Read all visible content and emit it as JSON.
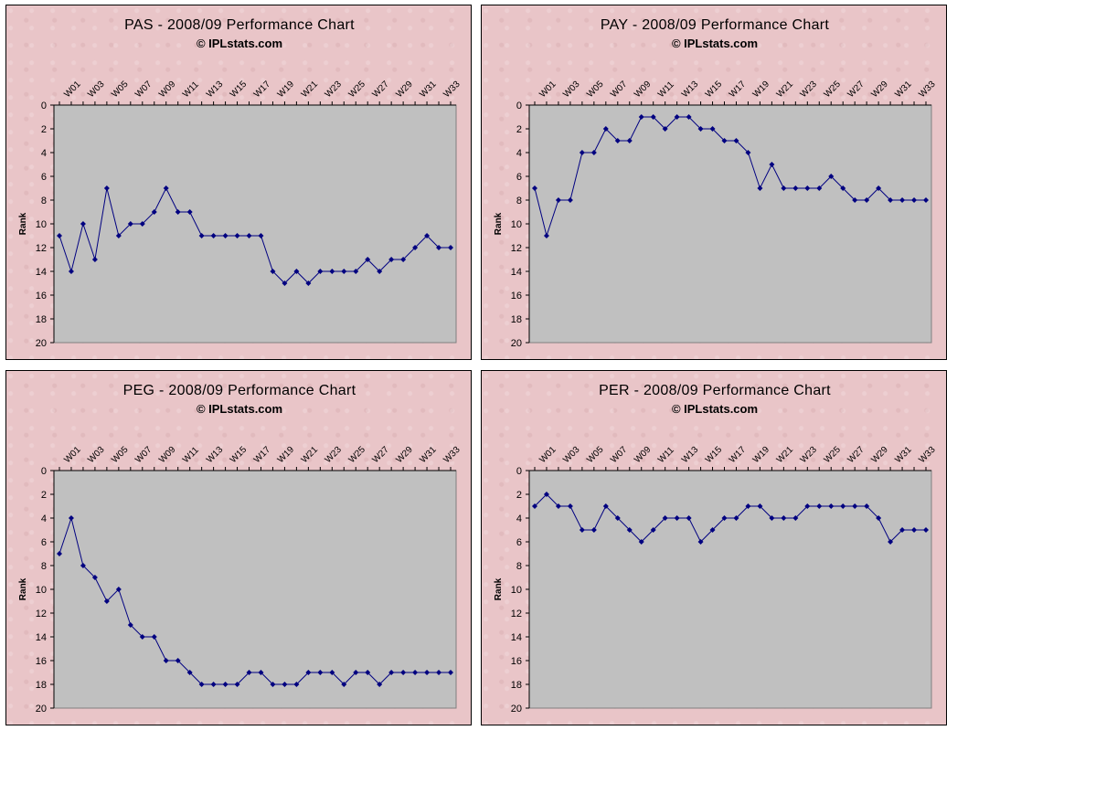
{
  "chart_data": [
    {
      "type": "line",
      "title": "PAS - 2008/09 Performance Chart",
      "subtitle": "© IPLstats.com",
      "ylabel": "Rank",
      "ylim": [
        20,
        0
      ],
      "ytick_labels": [
        "0",
        "2",
        "4",
        "6",
        "8",
        "10",
        "12",
        "14",
        "16",
        "18",
        "20"
      ],
      "xtick_labels": [
        "W01",
        "W03",
        "W05",
        "W07",
        "W09",
        "W11",
        "W13",
        "W15",
        "W17",
        "W19",
        "W21",
        "W23",
        "W25",
        "W27",
        "W29",
        "W31",
        "W33"
      ],
      "line_color": "#000080",
      "plot_bg": "#c0c0c0",
      "x": [
        "W00",
        "W01",
        "W02",
        "W03",
        "W04",
        "W05",
        "W06",
        "W07",
        "W08",
        "W09",
        "W10",
        "W11",
        "W12",
        "W13",
        "W14",
        "W15",
        "W16",
        "W17",
        "W18",
        "W19",
        "W20",
        "W21",
        "W22",
        "W23",
        "W24",
        "W25",
        "W26",
        "W27",
        "W28",
        "W29",
        "W30",
        "W31",
        "W32",
        "W33"
      ],
      "series": [
        {
          "values": [
            11,
            14,
            10,
            13,
            7,
            11,
            10,
            10,
            9,
            7,
            9,
            9,
            11,
            11,
            11,
            11,
            11,
            11,
            14,
            15,
            14,
            15,
            14,
            14,
            14,
            14,
            13,
            14,
            13,
            13,
            12,
            11,
            12,
            12
          ]
        }
      ]
    },
    {
      "type": "line",
      "title": "PAY - 2008/09 Performance Chart",
      "subtitle": "© IPLstats.com",
      "ylabel": "Rank",
      "ylim": [
        20,
        0
      ],
      "ytick_labels": [
        "0",
        "2",
        "4",
        "6",
        "8",
        "10",
        "12",
        "14",
        "16",
        "18",
        "20"
      ],
      "xtick_labels": [
        "W01",
        "W03",
        "W05",
        "W07",
        "W09",
        "W11",
        "W13",
        "W15",
        "W17",
        "W19",
        "W21",
        "W23",
        "W25",
        "W27",
        "W29",
        "W31",
        "W33"
      ],
      "line_color": "#000080",
      "plot_bg": "#c0c0c0",
      "x": [
        "W00",
        "W01",
        "W02",
        "W03",
        "W04",
        "W05",
        "W06",
        "W07",
        "W08",
        "W09",
        "W10",
        "W11",
        "W12",
        "W13",
        "W14",
        "W15",
        "W16",
        "W17",
        "W18",
        "W19",
        "W20",
        "W21",
        "W22",
        "W23",
        "W24",
        "W25",
        "W26",
        "W27",
        "W28",
        "W29",
        "W30",
        "W31",
        "W32",
        "W33"
      ],
      "series": [
        {
          "values": [
            7,
            11,
            8,
            8,
            4,
            4,
            2,
            3,
            3,
            1,
            1,
            2,
            1,
            1,
            2,
            2,
            3,
            3,
            4,
            7,
            5,
            7,
            7,
            7,
            7,
            6,
            7,
            8,
            8,
            7,
            8,
            8,
            8,
            8
          ]
        }
      ]
    },
    {
      "type": "line",
      "title": "PEG - 2008/09 Performance Chart",
      "subtitle": "© IPLstats.com",
      "ylabel": "Rank",
      "ylim": [
        20,
        0
      ],
      "ytick_labels": [
        "0",
        "2",
        "4",
        "6",
        "8",
        "10",
        "12",
        "14",
        "16",
        "18",
        "20"
      ],
      "xtick_labels": [
        "W01",
        "W03",
        "W05",
        "W07",
        "W09",
        "W11",
        "W13",
        "W15",
        "W17",
        "W19",
        "W21",
        "W23",
        "W25",
        "W27",
        "W29",
        "W31",
        "W33"
      ],
      "line_color": "#000080",
      "plot_bg": "#c0c0c0",
      "x": [
        "W00",
        "W01",
        "W02",
        "W03",
        "W04",
        "W05",
        "W06",
        "W07",
        "W08",
        "W09",
        "W10",
        "W11",
        "W12",
        "W13",
        "W14",
        "W15",
        "W16",
        "W17",
        "W18",
        "W19",
        "W20",
        "W21",
        "W22",
        "W23",
        "W24",
        "W25",
        "W26",
        "W27",
        "W28",
        "W29",
        "W30",
        "W31",
        "W32",
        "W33"
      ],
      "series": [
        {
          "values": [
            7,
            4,
            8,
            9,
            11,
            10,
            13,
            14,
            14,
            16,
            16,
            17,
            18,
            18,
            18,
            18,
            17,
            17,
            18,
            18,
            18,
            17,
            17,
            17,
            18,
            17,
            17,
            18,
            17,
            17,
            17,
            17,
            17,
            17
          ]
        }
      ]
    },
    {
      "type": "line",
      "title": "PER - 2008/09 Performance Chart",
      "subtitle": "© IPLstats.com",
      "ylabel": "Rank",
      "ylim": [
        20,
        0
      ],
      "ytick_labels": [
        "0",
        "2",
        "4",
        "6",
        "8",
        "10",
        "12",
        "14",
        "16",
        "18",
        "20"
      ],
      "xtick_labels": [
        "W01",
        "W03",
        "W05",
        "W07",
        "W09",
        "W11",
        "W13",
        "W15",
        "W17",
        "W19",
        "W21",
        "W23",
        "W25",
        "W27",
        "W29",
        "W31",
        "W33"
      ],
      "line_color": "#000080",
      "plot_bg": "#c0c0c0",
      "x": [
        "W00",
        "W01",
        "W02",
        "W03",
        "W04",
        "W05",
        "W06",
        "W07",
        "W08",
        "W09",
        "W10",
        "W11",
        "W12",
        "W13",
        "W14",
        "W15",
        "W16",
        "W17",
        "W18",
        "W19",
        "W20",
        "W21",
        "W22",
        "W23",
        "W24",
        "W25",
        "W26",
        "W27",
        "W28",
        "W29",
        "W30",
        "W31",
        "W32",
        "W33"
      ],
      "series": [
        {
          "values": [
            3,
            2,
            3,
            3,
            5,
            5,
            3,
            4,
            5,
            6,
            5,
            4,
            4,
            4,
            6,
            5,
            4,
            4,
            3,
            3,
            4,
            4,
            4,
            3,
            3,
            3,
            3,
            3,
            3,
            4,
            6,
            5,
            5,
            5
          ]
        }
      ]
    }
  ]
}
